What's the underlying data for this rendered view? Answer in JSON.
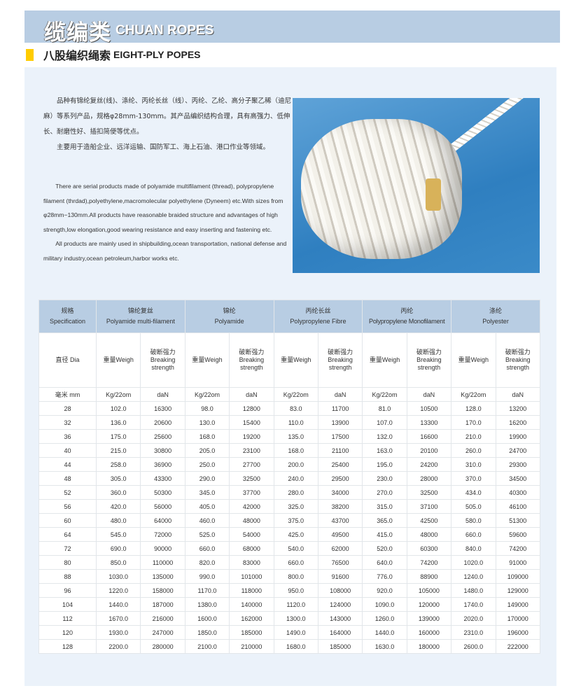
{
  "header": {
    "title_cn": "缆编类",
    "title_en": "CHUAN ROPES"
  },
  "section": {
    "title_cn": "八股编织绳索",
    "title_en": "EIGHT-PLY POPES",
    "accent": "#ffcc00"
  },
  "description_cn": [
    "品种有锦纶复丝(线)、涤纶、丙纶长丝（线）、丙纶、乙纶、高分子聚乙稀（迪尼麻）等系列产品，规格φ28mm-130mm。其产品编织结构合理，具有高强力、低伸长、耐磨性好、插扣简便等优点。",
    "主要用于造船企业、远洋运输、国防军工、海上石油、港口作业等领域。"
  ],
  "description_en": [
    "There are serial products made of polyamide multifilament (thread), polypropylene filament (thrdad),polyethylene,macromolecular polyethylene (Dyneem) etc.With sizes from φ28mm−130mm.All products have reasonable braided structure and advantages of high strength,low elongation,good wearing resistance and easy  inserting and fastening etc.",
    "All products are mainly used in shipbuilding,ocean transportation, national defense and military industry,ocean petroleum,harbor works etc."
  ],
  "table": {
    "spec": {
      "cn": "规格",
      "en": "Specification"
    },
    "materials": [
      {
        "cn": "锦纶复丝",
        "en": "Polyamide multi-filament"
      },
      {
        "cn": "锦纶",
        "en": "Polyamide"
      },
      {
        "cn": "丙纶长丝",
        "en": "Polypropylene Fibre"
      },
      {
        "cn": "丙纶",
        "en": "Polypropylene Monofilament"
      },
      {
        "cn": "涤纶",
        "en": "Polyester"
      }
    ],
    "dia_label": "直径 Dia",
    "weight_label": "重量Weigh",
    "strength_label_cn": "破断强力",
    "strength_label_en": "Breaking strength",
    "unit_dia": "毫米 mm",
    "unit_weight": "Kg/22om",
    "unit_strength": "daN",
    "rows": [
      [
        "28",
        "102.0",
        "16300",
        "98.0",
        "12800",
        "83.0",
        "11700",
        "81.0",
        "10500",
        "128.0",
        "13200"
      ],
      [
        "32",
        "136.0",
        "20600",
        "130.0",
        "15400",
        "110.0",
        "13900",
        "107.0",
        "13300",
        "170.0",
        "16200"
      ],
      [
        "36",
        "175.0",
        "25600",
        "168.0",
        "19200",
        "135.0",
        "17500",
        "132.0",
        "16600",
        "210.0",
        "19900"
      ],
      [
        "40",
        "215.0",
        "30800",
        "205.0",
        "23100",
        "168.0",
        "21100",
        "163.0",
        "20100",
        "260.0",
        "24700"
      ],
      [
        "44",
        "258.0",
        "36900",
        "250.0",
        "27700",
        "200.0",
        "25400",
        "195.0",
        "24200",
        "310.0",
        "29300"
      ],
      [
        "48",
        "305.0",
        "43300",
        "290.0",
        "32500",
        "240.0",
        "29500",
        "230.0",
        "28000",
        "370.0",
        "34500"
      ],
      [
        "52",
        "360.0",
        "50300",
        "345.0",
        "37700",
        "280.0",
        "34000",
        "270.0",
        "32500",
        "434.0",
        "40300"
      ],
      [
        "56",
        "420.0",
        "56000",
        "405.0",
        "42000",
        "325.0",
        "38200",
        "315.0",
        "37100",
        "505.0",
        "46100"
      ],
      [
        "60",
        "480.0",
        "64000",
        "460.0",
        "48000",
        "375.0",
        "43700",
        "365.0",
        "42500",
        "580.0",
        "51300"
      ],
      [
        "64",
        "545.0",
        "72000",
        "525.0",
        "54000",
        "425.0",
        "49500",
        "415.0",
        "48000",
        "660.0",
        "59600"
      ],
      [
        "72",
        "690.0",
        "90000",
        "660.0",
        "68000",
        "540.0",
        "62000",
        "520.0",
        "60300",
        "840.0",
        "74200"
      ],
      [
        "80",
        "850.0",
        "110000",
        "820.0",
        "83000",
        "660.0",
        "76500",
        "640.0",
        "74200",
        "1020.0",
        "91000"
      ],
      [
        "88",
        "1030.0",
        "135000",
        "990.0",
        "101000",
        "800.0",
        "91600",
        "776.0",
        "88900",
        "1240.0",
        "109000"
      ],
      [
        "96",
        "1220.0",
        "158000",
        "1170.0",
        "118000",
        "950.0",
        "108000",
        "920.0",
        "105000",
        "1480.0",
        "129000"
      ],
      [
        "104",
        "1440.0",
        "187000",
        "1380.0",
        "140000",
        "1120.0",
        "124000",
        "1090.0",
        "120000",
        "1740.0",
        "149000"
      ],
      [
        "112",
        "1670.0",
        "216000",
        "1600.0",
        "162000",
        "1300.0",
        "143000",
        "1260.0",
        "139000",
        "2020.0",
        "170000"
      ],
      [
        "120",
        "1930.0",
        "247000",
        "1850.0",
        "185000",
        "1490.0",
        "164000",
        "1440.0",
        "160000",
        "2310.0",
        "196000"
      ],
      [
        "128",
        "2200.0",
        "280000",
        "2100.0",
        "210000",
        "1680.0",
        "185000",
        "1630.0",
        "180000",
        "2600.0",
        "222000"
      ]
    ]
  }
}
